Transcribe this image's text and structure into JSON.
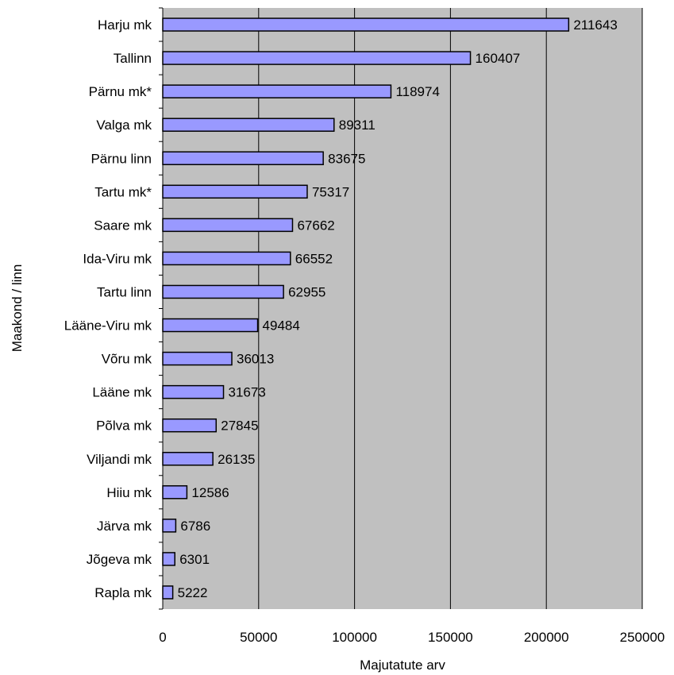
{
  "chart_data": {
    "type": "bar",
    "orientation": "horizontal",
    "categories": [
      "Harju mk",
      "Tallinn",
      "Pärnu mk*",
      "Valga mk",
      "Pärnu linn",
      "Tartu mk*",
      "Saare mk",
      "Ida-Viru mk",
      "Tartu linn",
      "Lääne-Viru mk",
      "Võru mk",
      "Lääne mk",
      "Põlva mk",
      "Viljandi mk",
      "Hiiu mk",
      "Järva mk",
      "Jõgeva mk",
      "Rapla mk"
    ],
    "values": [
      211643,
      160407,
      118974,
      89311,
      83675,
      75317,
      67662,
      66552,
      62955,
      49484,
      36013,
      31673,
      27845,
      26135,
      12586,
      6786,
      6301,
      5222
    ],
    "value_labels": [
      "211643",
      "160407",
      "118974",
      "89311",
      "83675",
      "75317",
      "67662",
      "66552",
      "62955",
      "49484",
      "36013",
      "31673",
      "27845",
      "26135",
      "12586",
      "6786",
      "6301",
      "5222"
    ],
    "xlim": [
      0,
      250000
    ],
    "x_ticks": [
      0,
      50000,
      100000,
      150000,
      200000,
      250000
    ],
    "x_tick_labels": [
      "0",
      "50000",
      "100000",
      "150000",
      "200000",
      "250000"
    ],
    "xlabel": "Majutatute arv",
    "ylabel": "Maakond / linn",
    "grid": "vertical",
    "legend": "none",
    "colors": {
      "bar_fill": "#9999ff",
      "bar_stroke": "#000000",
      "plot_background": "#c0c0c0",
      "grid": "#000000"
    }
  }
}
